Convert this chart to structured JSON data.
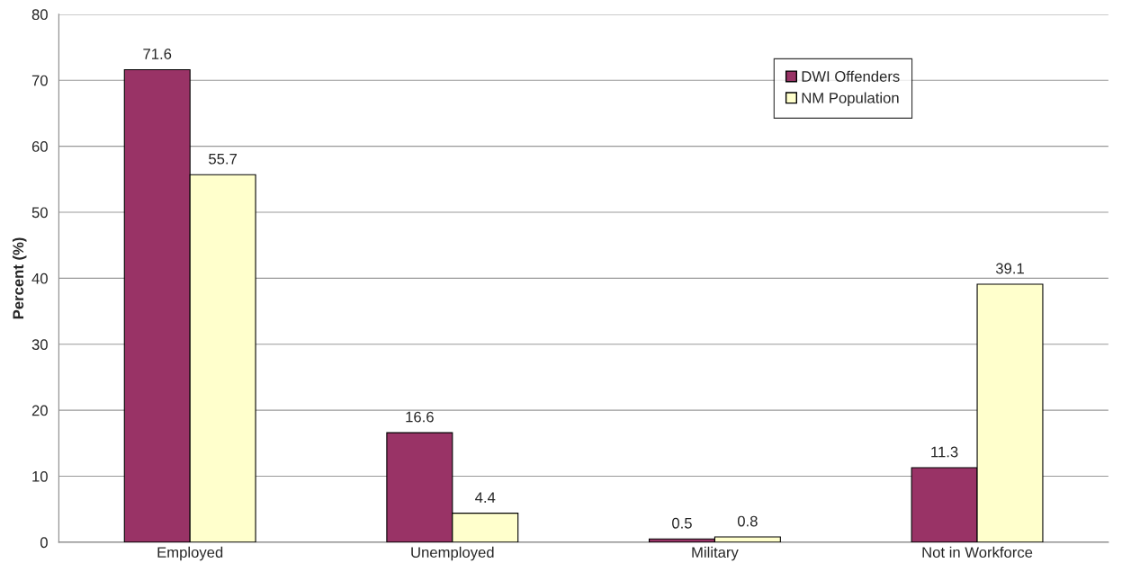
{
  "chart_data": {
    "type": "bar",
    "ylabel": "Percent (%)",
    "categories": [
      "Employed",
      "Unemployed",
      "Military",
      "Not in Workforce"
    ],
    "series": [
      {
        "name": "DWI Offenders",
        "color": "#993366",
        "values": [
          71.6,
          16.6,
          0.5,
          11.3
        ]
      },
      {
        "name": "NM Population",
        "color": "#ffffcc",
        "values": [
          55.7,
          4.4,
          0.8,
          39.1
        ]
      }
    ],
    "ylim": [
      0,
      80
    ],
    "yticks": [
      0,
      10,
      20,
      30,
      40,
      50,
      60,
      70,
      80
    ],
    "grid": "y",
    "legend": "top right",
    "data_labels": true
  }
}
